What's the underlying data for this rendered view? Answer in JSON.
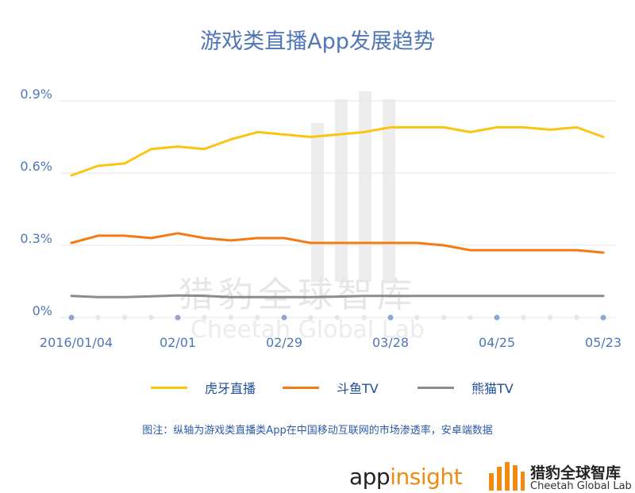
{
  "title": "游戏类直播App发展趋势",
  "colors": {
    "title": "#4f76b8",
    "axis_text": "#4f76b8",
    "grid": "#e6e6e6",
    "dot": "#8fa7d0",
    "dot_hollow": "#dfe7f3"
  },
  "chart_data": {
    "type": "line",
    "title": "游戏类直播App发展趋势",
    "xlabel": "",
    "ylabel": "",
    "ylim": [
      0,
      0.9
    ],
    "y_ticks": [
      "0.9%",
      "0.6%",
      "0.3%",
      "0%"
    ],
    "y_tick_values": [
      0.9,
      0.6,
      0.3,
      0
    ],
    "x_tick_labels": [
      "2016/01/04",
      "02/01",
      "02/29",
      "03/28",
      "04/25",
      "05/23"
    ],
    "x_tick_index": [
      0,
      4,
      8,
      12,
      16,
      20
    ],
    "x_count": 21,
    "grid": true,
    "legend_position": "bottom",
    "series": [
      {
        "name": "虎牙直播",
        "color": "#fcc412",
        "values": [
          0.59,
          0.63,
          0.64,
          0.7,
          0.71,
          0.7,
          0.74,
          0.77,
          0.76,
          0.75,
          0.76,
          0.77,
          0.79,
          0.79,
          0.79,
          0.77,
          0.79,
          0.79,
          0.78,
          0.79,
          0.75
        ]
      },
      {
        "name": "斗鱼TV",
        "color": "#f57a12",
        "values": [
          0.31,
          0.34,
          0.34,
          0.33,
          0.35,
          0.33,
          0.32,
          0.33,
          0.33,
          0.31,
          0.31,
          0.31,
          0.31,
          0.31,
          0.3,
          0.28,
          0.28,
          0.28,
          0.28,
          0.28,
          0.27
        ]
      },
      {
        "name": "熊猫TV",
        "color": "#8c8c8c",
        "values": [
          0.09,
          0.085,
          0.085,
          0.088,
          0.092,
          0.09,
          0.085,
          0.085,
          0.085,
          0.085,
          0.087,
          0.09,
          0.09,
          0.09,
          0.09,
          0.09,
          0.09,
          0.09,
          0.09,
          0.09,
          0.09
        ]
      }
    ]
  },
  "legend": [
    {
      "label": "虎牙直播",
      "color": "#fcc412"
    },
    {
      "label": "斗鱼TV",
      "color": "#f57a12"
    },
    {
      "label": "熊猫TV",
      "color": "#8c8c8c"
    }
  ],
  "note": "图注：纵轴为游戏类直播类App在中国移动互联网的市场渗透率，安卓端数据",
  "footer": {
    "appinsight_part1": "app",
    "appinsight_part2": "insight",
    "brand_cn": "猎豹全球智库",
    "brand_en": "Cheetah Global Lab"
  },
  "watermark": {
    "cn": "猎豹全球智库",
    "en": "Cheetah Global Lab"
  }
}
